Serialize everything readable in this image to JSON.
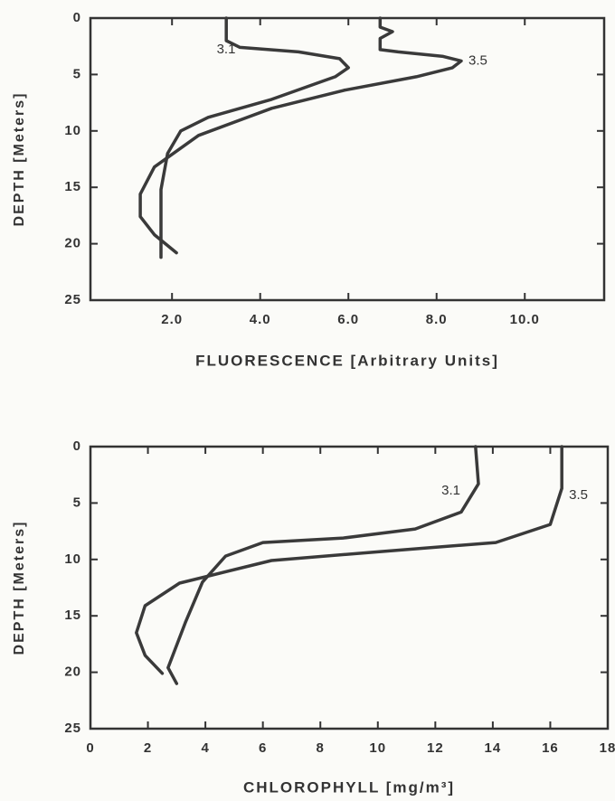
{
  "chart_data": [
    {
      "type": "line",
      "xlabel": "FLUORESCENCE [Arbitrary Units]",
      "ylabel": "DEPTH [Meters]",
      "xlim": [
        0.15,
        11.8
      ],
      "ylim": [
        25,
        0
      ],
      "xticks": [
        {
          "value": 2,
          "label": "2.0"
        },
        {
          "value": 4,
          "label": "4.0"
        },
        {
          "value": 6,
          "label": "6.0"
        },
        {
          "value": 8,
          "label": "8.0"
        },
        {
          "value": 10,
          "label": "10.0"
        }
      ],
      "yticks": [
        0,
        5,
        10,
        15,
        20,
        25
      ],
      "color": "#3a3a3a",
      "series": [
        {
          "name": "3.1",
          "x": [
            3.23,
            3.23,
            3.54,
            4.87,
            5.8,
            6.0,
            5.7,
            4.26,
            2.82,
            2.2,
            1.9,
            1.75,
            1.75
          ],
          "y": [
            0,
            2,
            2.6,
            3.0,
            3.6,
            4.4,
            5.2,
            7.2,
            8.8,
            10,
            12,
            15.2,
            21.2
          ]
        },
        {
          "name": "3.5",
          "x": [
            6.72,
            6.72,
            7.0,
            6.72,
            6.72,
            7.13,
            8.15,
            8.56,
            8.36,
            7.54,
            5.9,
            4.26,
            2.6,
            1.6,
            1.28,
            1.28,
            1.6,
            2.1
          ],
          "y": [
            0,
            0.8,
            1.2,
            1.8,
            2.8,
            3.0,
            3.4,
            3.8,
            4.4,
            5.2,
            6.4,
            8.0,
            10.4,
            13.2,
            15.6,
            17.6,
            19.2,
            20.8
          ]
        }
      ]
    },
    {
      "type": "line",
      "xlabel": "CHLOROPHYLL [mg/m³]",
      "ylabel": "DEPTH [Meters]",
      "xlim": [
        0,
        18
      ],
      "ylim": [
        25,
        0
      ],
      "xticks": [
        0,
        2,
        4,
        6,
        8,
        10,
        12,
        14,
        16,
        18
      ],
      "yticks": [
        0,
        5,
        10,
        15,
        20,
        25
      ],
      "color": "#3a3a3a",
      "series": [
        {
          "name": "3.1",
          "x": [
            13.4,
            13.5,
            12.9,
            11.3,
            8.8,
            6.0,
            4.7,
            3.9,
            3.3,
            2.7,
            3.0
          ],
          "y": [
            0,
            3.3,
            5.8,
            7.3,
            8.1,
            8.5,
            9.7,
            12.0,
            15.6,
            19.6,
            21
          ]
        },
        {
          "name": "3.5",
          "x": [
            16.4,
            16.4,
            16.0,
            14.1,
            10.1,
            6.3,
            3.1,
            1.9,
            1.6,
            1.9,
            2.5
          ],
          "y": [
            0,
            3.7,
            6.9,
            8.5,
            9.3,
            10.1,
            12.1,
            14.1,
            16.5,
            18.5,
            20.1
          ]
        }
      ]
    }
  ]
}
